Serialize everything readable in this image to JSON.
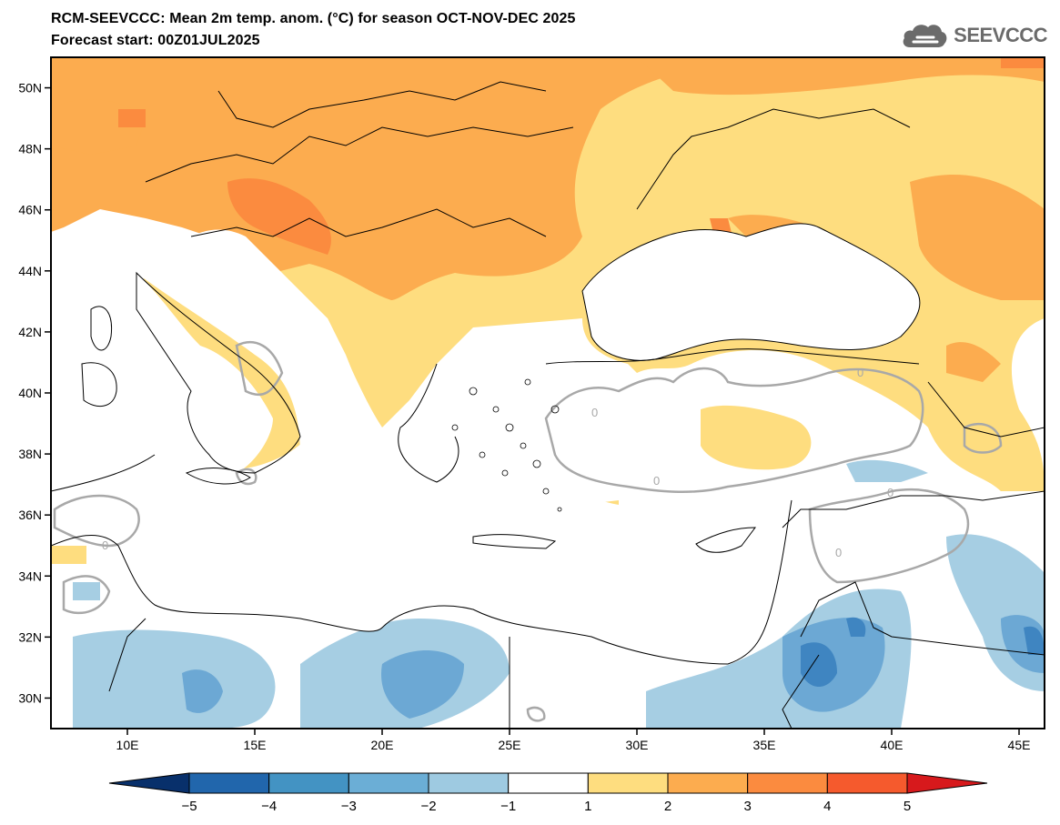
{
  "header": {
    "line1": "RCM-SEEVCCC: Mean 2m temp. anom. (°C) for season OCT-NOV-DEC 2025",
    "line2": "Forecast start: 00Z01JUL2025"
  },
  "logo": {
    "text": "SEEVCCC",
    "icon": "cloud-logo-icon",
    "color": "#6b6b6b"
  },
  "map": {
    "lon_range": [
      7,
      46
    ],
    "lat_range": [
      29,
      51
    ],
    "lat_ticks": [
      {
        "value": 50,
        "label": "50N"
      },
      {
        "value": 48,
        "label": "48N"
      },
      {
        "value": 46,
        "label": "46N"
      },
      {
        "value": 44,
        "label": "44N"
      },
      {
        "value": 42,
        "label": "42N"
      },
      {
        "value": 40,
        "label": "40N"
      },
      {
        "value": 38,
        "label": "38N"
      },
      {
        "value": 36,
        "label": "36N"
      },
      {
        "value": 34,
        "label": "34N"
      },
      {
        "value": 32,
        "label": "32N"
      },
      {
        "value": 30,
        "label": "30N"
      }
    ],
    "lon_ticks": [
      {
        "value": 10,
        "label": "10E"
      },
      {
        "value": 15,
        "label": "15E"
      },
      {
        "value": 20,
        "label": "20E"
      },
      {
        "value": 25,
        "label": "25E"
      },
      {
        "value": 30,
        "label": "30E"
      },
      {
        "value": 35,
        "label": "35E"
      },
      {
        "value": 40,
        "label": "40E"
      },
      {
        "value": 45,
        "label": "45E"
      }
    ],
    "contour_label": "0",
    "colors": {
      "anom_1_2": "#fedd7f",
      "anom_2_3": "#fcac4f",
      "anom_3_4": "#fb8b3f",
      "anom_m1_m2": "#a6cee3",
      "anom_m2_m3": "#6ca8d4",
      "anom_m3_m4": "#3f85c1",
      "zero_contour": "#a8a8a8",
      "border": "#000000"
    }
  },
  "colorbar": {
    "colors": [
      "#08306b",
      "#2166ac",
      "#4393c3",
      "#6baed6",
      "#9ecae1",
      "#ffffff",
      "#fedd7f",
      "#fcac4f",
      "#fb8b3f",
      "#f55a2d",
      "#d7191c"
    ],
    "ticks": [
      "−5",
      "−4",
      "−3",
      "−2",
      "−1",
      "1",
      "2",
      "3",
      "4",
      "5"
    ]
  }
}
